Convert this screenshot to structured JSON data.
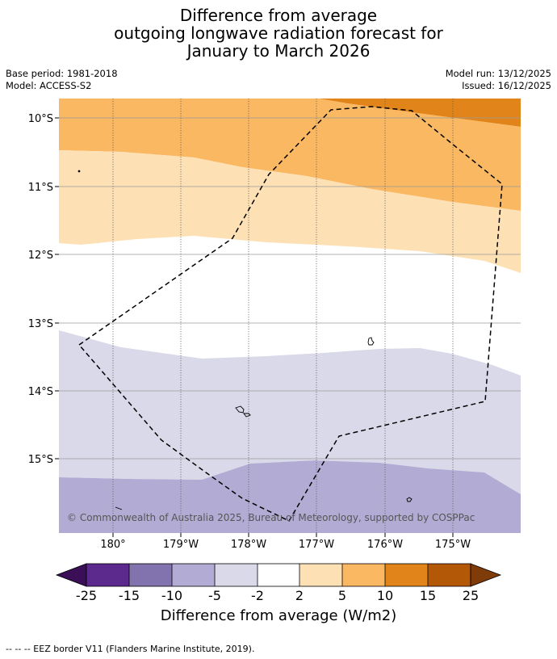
{
  "title": {
    "line1": "Difference from average",
    "line2": "outgoing longwave radiation forecast for",
    "line3": "January to March 2026"
  },
  "meta": {
    "base_period": "Base period: 1981-2018",
    "model": "Model: ACCESS-S2",
    "model_run": "Model run: 13/12/2025",
    "issued": "Issued: 16/12/2025"
  },
  "map": {
    "latitude_labels": [
      "10°S",
      "11°S",
      "12°S",
      "13°S",
      "14°S",
      "15°S"
    ],
    "longitude_labels": [
      "180°",
      "179°W",
      "178°W",
      "177°W",
      "176°W",
      "175°W"
    ],
    "copyright": "© Commonwealth of Australia 2025, Bureau of Meteorology, supported by COSPPac"
  },
  "colorbar": {
    "title": "Difference from average (W/m2)",
    "tick_labels": [
      "-25",
      "-15",
      "-10",
      "-5",
      "-2",
      "2",
      "5",
      "10",
      "15",
      "25"
    ],
    "colors": [
      "#3b0f57",
      "#5b2a8c",
      "#8272ad",
      "#b2acd4",
      "#d9d9e9",
      "#ffffff",
      "#fde0b4",
      "#fbb862",
      "#e18419",
      "#b35806",
      "#7f3b08"
    ]
  },
  "fill_colors": {
    "dark_orange": "#e18419",
    "orange": "#fbb862",
    "light_orange": "#fde0b4",
    "light_purple": "#d9d9e9",
    "purple": "#b2acd4"
  },
  "footnote": "--  --  -- EEZ border V11 (Flanders Marine Institute, 2019)."
}
